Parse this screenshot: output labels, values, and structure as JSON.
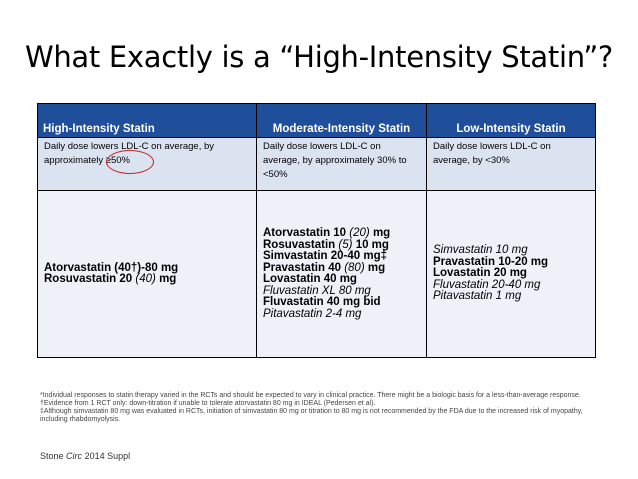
{
  "title": "What Exactly is a “High-Intensity Statin”?",
  "table": {
    "headers": [
      "High-Intensity Statin",
      "Moderate-Intensity Statin",
      "Low-Intensity Statin"
    ],
    "descriptions": [
      "Daily dose lowers LDL-C on average, by approximately ≥50%",
      "Daily dose lowers LDL-C on average, by approximately 30% to <50%",
      "Daily dose lowers LDL-C on average, by <30%"
    ],
    "high": [
      {
        "name": "Atorvastatin (40†)-80 mg",
        "style": "bold"
      },
      {
        "name": "Rosuvastatin 20",
        "dose": "(40)",
        "unit": "mg",
        "style": "bold"
      }
    ],
    "moderate": [
      {
        "name": "Atorvastatin 10",
        "dose": "(20)",
        "unit": "mg",
        "style": "bold"
      },
      {
        "name": "Rosuvastatin",
        "dose": "(5)",
        "unit": "10 mg",
        "style": "bold"
      },
      {
        "name": "Simvastatin 20-40 mg‡",
        "style": "bold"
      },
      {
        "name": "Pravastatin 40",
        "dose": "(80)",
        "unit": "mg",
        "style": "bold"
      },
      {
        "name": "Lovastatin 40 mg",
        "style": "bold"
      },
      {
        "name": "Fluvastatin XL 80 mg",
        "style": "italic"
      },
      {
        "name": "Fluvastatin 40 mg bid",
        "style": "bold"
      },
      {
        "name": "Pitavastatin 2-4 mg",
        "style": "italic"
      }
    ],
    "low": [
      {
        "name": "Simvastatin 10 mg",
        "style": "italic"
      },
      {
        "name": "Pravastatin 10-20 mg",
        "style": "bold"
      },
      {
        "name": "Lovastatin 20 mg",
        "style": "bold"
      },
      {
        "name": "Fluvastatin 20-40 mg",
        "style": "italic"
      },
      {
        "name": "Pitavastatin 1 mg",
        "style": "italic"
      }
    ]
  },
  "footnotes": [
    "*Individual responses to statin therapy varied in the RCTs and should be expected to vary in clinical practice. There might be a biologic basis for a less-than-average response.",
    "†Evidence from 1 RCT only: down-titration if unable to tolerate atorvastatin 80 mg in IDEAL (Pedersen et al).",
    "‡Although simvastatin 80 mg was evaluated in RCTs, initiation of simvastatin 80 mg or titration to 80 mg is not recommended by the FDA due to the increased risk of myopathy, including rhabdomyolysis."
  ],
  "source": {
    "author": "Stone",
    "journal": "Circ",
    "rest": "2014 Suppl"
  },
  "colors": {
    "header_bg": "#1f4e9a",
    "desc_bg": "#dbe3f1",
    "drug_bg": "#eef1f8",
    "circle": "#c0282d"
  }
}
